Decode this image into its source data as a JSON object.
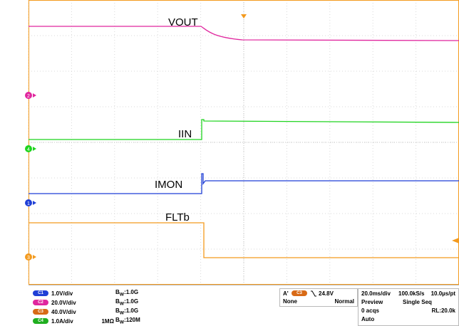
{
  "waveforms": [
    {
      "label": "VOUT",
      "color": "#e0269e"
    },
    {
      "label": "IIN",
      "color": "#1fd41f"
    },
    {
      "label": "IMON",
      "color": "#1f3fd6"
    },
    {
      "label": "FLTb",
      "color": "#f39a1e"
    }
  ],
  "markers": [
    {
      "text": "2",
      "color": "#e0269e"
    },
    {
      "text": "4",
      "color": "#1fd41f"
    },
    {
      "text": "1",
      "color": "#1f3fd6"
    },
    {
      "text": "3",
      "color": "#f39a1e"
    }
  ],
  "channels": [
    {
      "badge": "C1",
      "color": "#1f3fd6",
      "scale": "1.0V/div",
      "term": "",
      "bw": "1.0G"
    },
    {
      "badge": "C2",
      "color": "#e0269e",
      "scale": "20.0V/div",
      "term": "",
      "bw": "1.0G"
    },
    {
      "badge": "C3",
      "color": "#d86a16",
      "scale": "40.0V/div",
      "term": "",
      "bw": "1.0G"
    },
    {
      "badge": "C4",
      "color": "#1fae1f",
      "scale": "1.0A/div",
      "term": "1MΩ",
      "bw": "120M"
    }
  ],
  "bw_prefix": "B",
  "bw_sub": "W",
  "trigger": {
    "label": "A'",
    "channel": "C3",
    "level": "24.8V",
    "coupling": "None",
    "mode": "Normal"
  },
  "acquisition": {
    "timebase": "20.0ms/div",
    "sample_rate": "100.0kS/s",
    "resolution": "10.0µs/pt",
    "state": "Preview",
    "sequence": "Single Seq",
    "acqs": "0 acqs",
    "record_length": "RL:20.0k",
    "run_mode": "Auto"
  }
}
